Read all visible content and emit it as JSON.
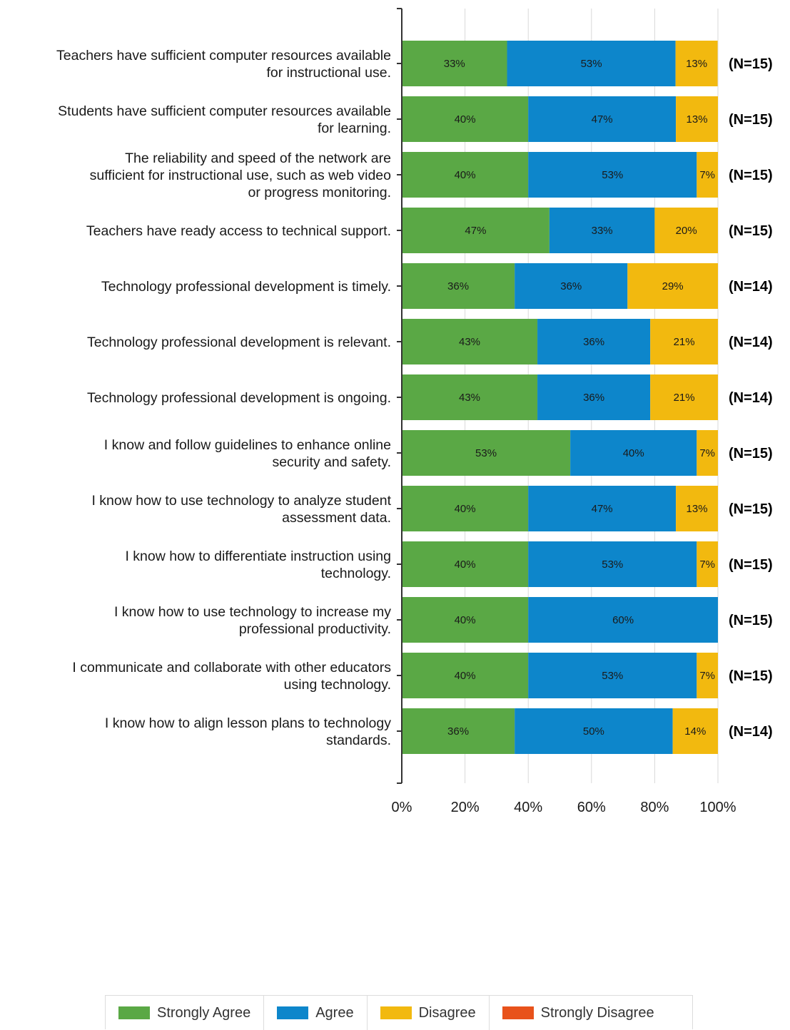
{
  "chart_data": {
    "type": "bar",
    "orientation": "horizontal",
    "stacked": true,
    "categories": [
      [
        "Teachers have sufficient computer resources available",
        "for instructional use."
      ],
      [
        "Students have sufficient computer resources available",
        "for learning."
      ],
      [
        "The reliability and speed of the network are",
        "sufficient for instructional use, such as web video",
        "or progress monitoring."
      ],
      [
        "Teachers have ready access to technical support."
      ],
      [
        "Technology professional development is timely."
      ],
      [
        "Technology professional development is relevant."
      ],
      [
        "Technology professional development is ongoing."
      ],
      [
        "I know and follow guidelines to enhance online",
        "security and safety."
      ],
      [
        "I know how to use technology to analyze student",
        "assessment data."
      ],
      [
        "I know how to differentiate instruction using",
        "technology."
      ],
      [
        "I know how to use technology to increase my",
        "professional productivity."
      ],
      [
        "I communicate and collaborate with other educators",
        "using technology."
      ],
      [
        "I know how to align lesson plans to technology",
        "standards."
      ]
    ],
    "series": [
      {
        "name": "Strongly Agree",
        "color": "#5aa845",
        "values": [
          33.3,
          40,
          40,
          46.7,
          35.7,
          42.9,
          42.9,
          53.3,
          40,
          40,
          40,
          40,
          35.7
        ],
        "labels": [
          "33%",
          "40%",
          "40%",
          "47%",
          "36%",
          "43%",
          "43%",
          "53%",
          "40%",
          "40%",
          "40%",
          "40%",
          "36%"
        ]
      },
      {
        "name": "Agree",
        "color": "#0d86cb",
        "values": [
          53.3,
          46.7,
          53.3,
          33.3,
          35.7,
          35.7,
          35.7,
          40,
          46.7,
          53.3,
          60,
          53.3,
          50
        ],
        "labels": [
          "53%",
          "47%",
          "53%",
          "33%",
          "36%",
          "36%",
          "36%",
          "40%",
          "47%",
          "53%",
          "60%",
          "53%",
          "50%"
        ]
      },
      {
        "name": "Disagree",
        "color": "#f2b90f",
        "values": [
          13.3,
          13.3,
          6.7,
          20,
          28.6,
          21.4,
          21.4,
          6.7,
          13.3,
          6.7,
          0,
          6.7,
          14.3
        ],
        "labels": [
          "13%",
          "13%",
          "7%",
          "20%",
          "29%",
          "21%",
          "21%",
          "7%",
          "13%",
          "7%",
          "",
          "7%",
          "14%"
        ]
      },
      {
        "name": "Strongly Disagree",
        "color": "#e8521b",
        "values": [
          0,
          0,
          0,
          0,
          0,
          0,
          0,
          0,
          0,
          0,
          0,
          0,
          0
        ],
        "labels": [
          "",
          "",
          "",
          "",
          "",
          "",
          "",
          "",
          "",
          "",
          "",
          "",
          ""
        ]
      }
    ],
    "n_labels": [
      "(N=15)",
      "(N=15)",
      "(N=15)",
      "(N=15)",
      "(N=14)",
      "(N=14)",
      "(N=14)",
      "(N=15)",
      "(N=15)",
      "(N=15)",
      "(N=15)",
      "(N=15)",
      "(N=14)"
    ],
    "x_ticks": [
      "0%",
      "20%",
      "40%",
      "60%",
      "80%",
      "100%"
    ],
    "xlim": [
      0,
      100
    ],
    "grid": true,
    "legend_position": "bottom",
    "title": "",
    "xlabel": "",
    "ylabel": ""
  },
  "legend": [
    {
      "label": "Strongly Agree",
      "color": "#5aa845"
    },
    {
      "label": "Agree",
      "color": "#0d86cb"
    },
    {
      "label": "Disagree",
      "color": "#f2b90f"
    },
    {
      "label": "Strongly Disagree",
      "color": "#e8521b"
    }
  ]
}
